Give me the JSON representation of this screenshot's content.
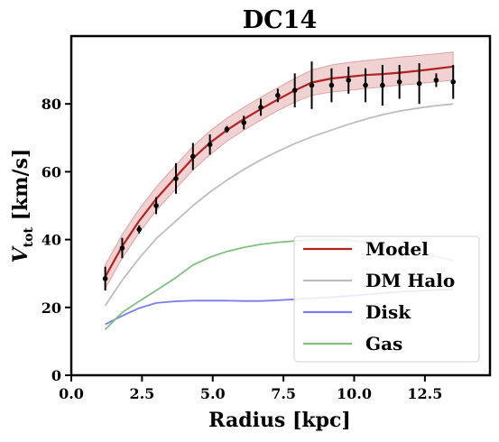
{
  "chart_data": {
    "type": "line",
    "title": "DC14",
    "xlabel": "Radius [kpc]",
    "ylabel_main": "V",
    "ylabel_sub": "tot",
    "ylabel_unit": " [km/s]",
    "xlim": [
      0,
      14.8
    ],
    "ylim": [
      0,
      100
    ],
    "xticks": [
      0,
      2.5,
      5,
      7.5,
      10,
      12.5
    ],
    "xtick_labels": [
      "0.0",
      "2.5",
      "5.0",
      "7.5",
      "10.0",
      "12.5"
    ],
    "yticks": [
      0,
      20,
      40,
      60,
      80
    ],
    "ytick_labels": [
      "0",
      "20",
      "40",
      "60",
      "80"
    ],
    "legend_position": "lower-right",
    "legend": [
      "Model",
      "DM Halo",
      "Disk",
      "Gas"
    ],
    "colors": {
      "model": "#b22222",
      "band": "#e8b4b4",
      "halo": "#bdbdbd",
      "disk": "#7b7bf0",
      "gas": "#7fbf7f",
      "data": "#000000"
    },
    "series": [
      {
        "name": "Model",
        "x": [
          1.2,
          1.8,
          2.4,
          3.0,
          3.7,
          4.3,
          4.9,
          5.5,
          6.1,
          6.7,
          7.3,
          7.9,
          8.5,
          9.2,
          9.8,
          10.4,
          11.0,
          11.6,
          12.3,
          12.9,
          13.5
        ],
        "y": [
          29,
          38,
          45.5,
          52,
          58.5,
          64,
          68.5,
          72.3,
          75.5,
          78.5,
          81.3,
          84,
          86.3,
          87.5,
          88,
          88.5,
          88.8,
          89.2,
          89.8,
          90.4,
          91
        ]
      },
      {
        "name": "DM Halo",
        "x": [
          1.2,
          1.8,
          2.4,
          3.0,
          3.7,
          4.3,
          4.9,
          5.5,
          6.1,
          6.7,
          7.3,
          7.9,
          8.5,
          9.2,
          9.8,
          10.4,
          11.0,
          11.6,
          12.3,
          12.9,
          13.5
        ],
        "y": [
          20.5,
          28,
          34.5,
          40.3,
          45.5,
          50,
          54,
          57.5,
          60.7,
          63.5,
          66,
          68.3,
          70.3,
          72.3,
          74,
          75.5,
          76.8,
          77.9,
          78.8,
          79.5,
          80
        ]
      },
      {
        "name": "Disk",
        "x": [
          1.2,
          1.8,
          2.4,
          3.0,
          3.7,
          4.3,
          4.9,
          5.5,
          6.1,
          6.7,
          7.3,
          7.9,
          8.5,
          9.2,
          9.8,
          10.4,
          11.0,
          11.6,
          12.3,
          12.9,
          13.5
        ],
        "y": [
          15,
          17.5,
          19.8,
          21.3,
          21.8,
          22,
          22,
          22,
          21.9,
          21.9,
          22.1,
          22.4,
          22.7,
          23,
          23.4,
          23.8,
          24.2,
          24.6,
          24.9,
          25.1,
          25.3
        ]
      },
      {
        "name": "Gas",
        "x": [
          1.2,
          1.8,
          2.4,
          3.0,
          3.7,
          4.3,
          4.9,
          5.5,
          6.1,
          6.7,
          7.3,
          7.9,
          8.5,
          9.2,
          9.8,
          10.4,
          11.0,
          11.6,
          12.3,
          12.9,
          13.5
        ],
        "y": [
          13.5,
          18.5,
          21.8,
          25,
          28.8,
          32.5,
          34.8,
          36.5,
          37.7,
          38.6,
          39.2,
          39.6,
          39.9,
          40,
          39.8,
          39.3,
          38.5,
          37.5,
          36.3,
          35,
          33.8
        ]
      }
    ],
    "model_band": {
      "lower": [
        25.5,
        34.5,
        42,
        48.5,
        55,
        60.5,
        65,
        69,
        72.2,
        75.2,
        78,
        80.5,
        82.5,
        83.5,
        84,
        84.5,
        85,
        85.5,
        86,
        86.5,
        87
      ],
      "upper": [
        32.5,
        41.5,
        49,
        55.5,
        62,
        67.5,
        72,
        75.8,
        79,
        82,
        84.8,
        87.5,
        90,
        91.5,
        92.2,
        92.8,
        93.3,
        93.8,
        94.3,
        94.8,
        95.3
      ]
    },
    "observations": {
      "x": [
        1.2,
        1.8,
        2.4,
        3.0,
        3.7,
        4.3,
        4.9,
        5.5,
        6.1,
        6.7,
        7.3,
        7.9,
        8.5,
        9.2,
        9.8,
        10.4,
        11.0,
        11.6,
        12.3,
        12.9,
        13.5
      ],
      "y": [
        28.5,
        37.5,
        43,
        50,
        58,
        64.5,
        68,
        72.5,
        74.5,
        79,
        82.5,
        84,
        85.5,
        85.5,
        87,
        85.5,
        85.5,
        86.5,
        86,
        87,
        86.5
      ],
      "err": [
        3.5,
        3,
        1.2,
        2.5,
        4.5,
        4,
        3,
        1,
        2,
        2.5,
        2,
        5,
        7,
        5,
        4,
        5,
        6,
        5,
        6,
        2,
        5
      ]
    }
  }
}
